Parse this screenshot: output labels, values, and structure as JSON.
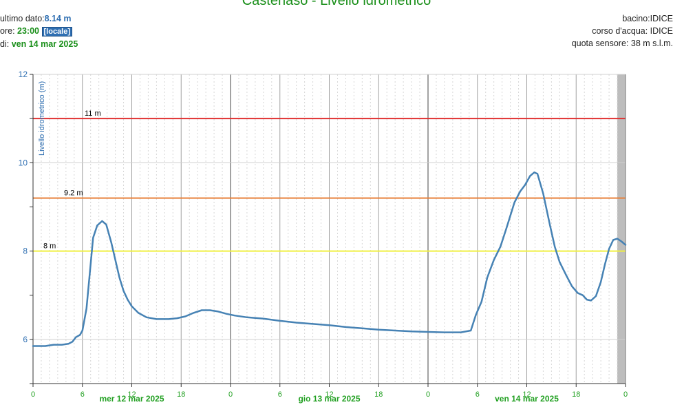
{
  "header": {
    "title": "Castenaso - Livello idrometrico",
    "last_label": "ultimo dato:",
    "last_value": "8.14 m",
    "time_label": "ore:",
    "time_value": "23:00",
    "time_badge": "[locale]",
    "date_label": "di:",
    "date_value": "ven 14 mar 2025",
    "basin": "bacino:IDICE",
    "river": "corso d'acqua: IDICE",
    "sensor_height": "quota sensore: 38 m s.l.m."
  },
  "chart_data": {
    "type": "line",
    "ylabel": "Livello idrometrico (m)",
    "ylim": [
      5,
      12
    ],
    "yticks": [
      "6",
      "8",
      "10",
      "12"
    ],
    "xlim": [
      0,
      72
    ],
    "xticks": [
      {
        "h": 0,
        "label": "0"
      },
      {
        "h": 6,
        "label": "6"
      },
      {
        "h": 12,
        "label": "12"
      },
      {
        "h": 18,
        "label": "18"
      },
      {
        "h": 24,
        "label": "0"
      },
      {
        "h": 30,
        "label": "6"
      },
      {
        "h": 36,
        "label": "12"
      },
      {
        "h": 42,
        "label": "18"
      },
      {
        "h": 48,
        "label": "0"
      },
      {
        "h": 54,
        "label": "6"
      },
      {
        "h": 60,
        "label": "12"
      },
      {
        "h": 66,
        "label": "18"
      },
      {
        "h": 72,
        "label": "0"
      }
    ],
    "day_labels": [
      {
        "h": 12,
        "label": "mer 12 mar 2025"
      },
      {
        "h": 36,
        "label": "gio 13 mar 2025"
      },
      {
        "h": 60,
        "label": "ven 14 mar 2025"
      }
    ],
    "thresholds": [
      {
        "value": 11,
        "label": "11 m",
        "color": "#e03030"
      },
      {
        "value": 9.2,
        "label": "9.2 m",
        "color": "#e8803a"
      },
      {
        "value": 8,
        "label": "8 m",
        "color": "#f0f040"
      }
    ],
    "series": [
      {
        "color": "#4682b4",
        "points": [
          [
            0,
            5.85
          ],
          [
            1.5,
            5.85
          ],
          [
            2.5,
            5.88
          ],
          [
            3.5,
            5.88
          ],
          [
            4.3,
            5.9
          ],
          [
            4.8,
            5.95
          ],
          [
            5.2,
            6.05
          ],
          [
            5.7,
            6.1
          ],
          [
            6.0,
            6.2
          ],
          [
            6.5,
            6.7
          ],
          [
            6.9,
            7.5
          ],
          [
            7.3,
            8.3
          ],
          [
            7.8,
            8.58
          ],
          [
            8.4,
            8.68
          ],
          [
            8.9,
            8.6
          ],
          [
            9.5,
            8.2
          ],
          [
            10.0,
            7.8
          ],
          [
            10.5,
            7.4
          ],
          [
            11.0,
            7.1
          ],
          [
            11.5,
            6.9
          ],
          [
            12.0,
            6.75
          ],
          [
            12.8,
            6.6
          ],
          [
            13.8,
            6.5
          ],
          [
            15.0,
            6.46
          ],
          [
            16.5,
            6.46
          ],
          [
            17.5,
            6.48
          ],
          [
            18.5,
            6.52
          ],
          [
            19.5,
            6.6
          ],
          [
            20.5,
            6.66
          ],
          [
            21.5,
            6.66
          ],
          [
            22.5,
            6.63
          ],
          [
            23.5,
            6.58
          ],
          [
            24.5,
            6.54
          ],
          [
            26,
            6.5
          ],
          [
            28,
            6.47
          ],
          [
            30,
            6.42
          ],
          [
            32,
            6.38
          ],
          [
            34,
            6.35
          ],
          [
            36,
            6.32
          ],
          [
            38,
            6.28
          ],
          [
            40,
            6.25
          ],
          [
            42,
            6.22
          ],
          [
            44,
            6.2
          ],
          [
            46,
            6.18
          ],
          [
            48,
            6.17
          ],
          [
            50,
            6.16
          ],
          [
            52,
            6.16
          ],
          [
            53.2,
            6.2
          ],
          [
            53.8,
            6.55
          ],
          [
            54.5,
            6.85
          ],
          [
            55.2,
            7.4
          ],
          [
            56.0,
            7.8
          ],
          [
            56.8,
            8.1
          ],
          [
            57.5,
            8.5
          ],
          [
            58.0,
            8.8
          ],
          [
            58.5,
            9.1
          ],
          [
            59.2,
            9.35
          ],
          [
            59.8,
            9.5
          ],
          [
            60.4,
            9.7
          ],
          [
            60.9,
            9.78
          ],
          [
            61.3,
            9.75
          ],
          [
            62.0,
            9.3
          ],
          [
            62.8,
            8.6
          ],
          [
            63.4,
            8.1
          ],
          [
            64.0,
            7.75
          ],
          [
            64.8,
            7.45
          ],
          [
            65.5,
            7.2
          ],
          [
            66.2,
            7.05
          ],
          [
            66.8,
            7.0
          ],
          [
            67.3,
            6.9
          ],
          [
            67.8,
            6.88
          ],
          [
            68.4,
            6.98
          ],
          [
            69.0,
            7.3
          ],
          [
            69.5,
            7.7
          ],
          [
            70.0,
            8.05
          ],
          [
            70.5,
            8.25
          ],
          [
            71.0,
            8.28
          ],
          [
            71.5,
            8.22
          ],
          [
            72.0,
            8.14
          ]
        ]
      }
    ]
  }
}
